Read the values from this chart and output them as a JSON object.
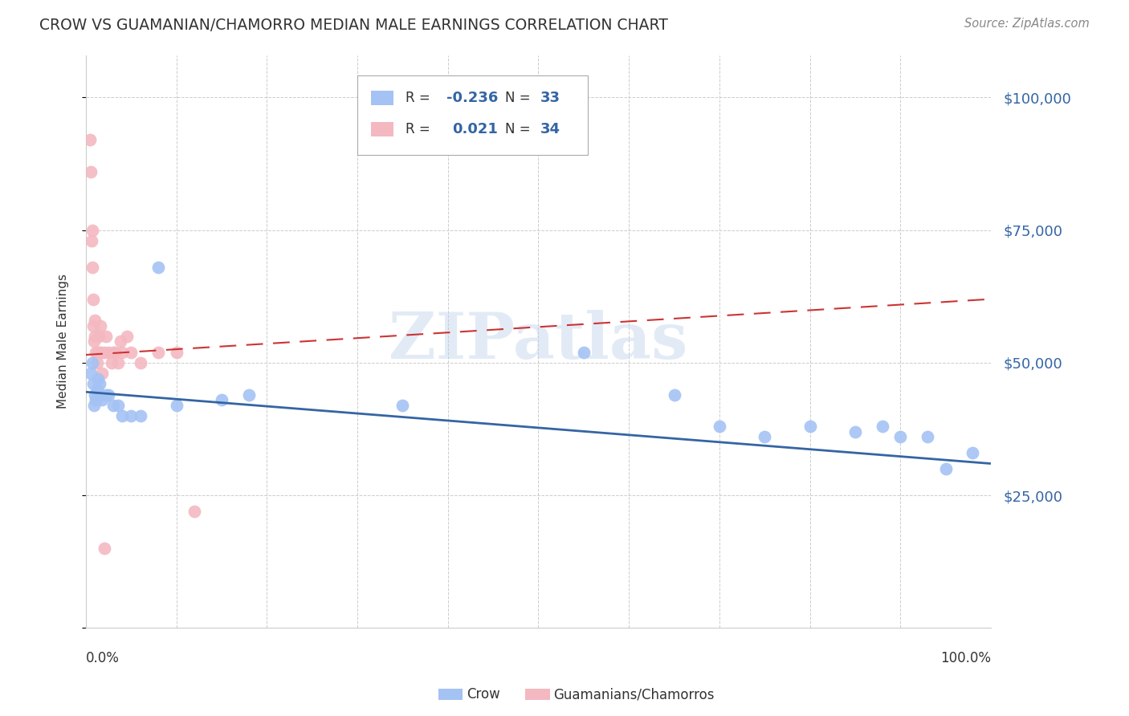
{
  "title": "CROW VS GUAMANIAN/CHAMORRO MEDIAN MALE EARNINGS CORRELATION CHART",
  "source": "Source: ZipAtlas.com",
  "ylabel": "Median Male Earnings",
  "yticks": [
    0,
    25000,
    50000,
    75000,
    100000
  ],
  "ytick_labels": [
    "",
    "$25,000",
    "$50,000",
    "$75,000",
    "$100,000"
  ],
  "crow_R": -0.236,
  "crow_N": 33,
  "guam_R": 0.021,
  "guam_N": 34,
  "crow_color": "#a4c2f4",
  "guam_color": "#f4b8c1",
  "trend_crow_color": "#3465a4",
  "trend_guam_color": "#cc3333",
  "watermark": "ZIPatlas",
  "crow_x": [
    0.005,
    0.007,
    0.008,
    0.009,
    0.01,
    0.011,
    0.012,
    0.013,
    0.015,
    0.018,
    0.022,
    0.025,
    0.03,
    0.035,
    0.04,
    0.05,
    0.06,
    0.08,
    0.1,
    0.15,
    0.18,
    0.35,
    0.55,
    0.65,
    0.7,
    0.75,
    0.8,
    0.85,
    0.88,
    0.9,
    0.93,
    0.95,
    0.98
  ],
  "crow_y": [
    48000,
    50000,
    46000,
    42000,
    44000,
    43000,
    45000,
    47000,
    46000,
    43000,
    44000,
    44000,
    42000,
    42000,
    40000,
    40000,
    40000,
    68000,
    42000,
    43000,
    44000,
    42000,
    52000,
    44000,
    38000,
    36000,
    38000,
    37000,
    38000,
    36000,
    36000,
    30000,
    33000
  ],
  "guam_x": [
    0.004,
    0.005,
    0.006,
    0.007,
    0.007,
    0.008,
    0.008,
    0.009,
    0.01,
    0.01,
    0.011,
    0.012,
    0.013,
    0.014,
    0.015,
    0.016,
    0.017,
    0.018,
    0.02,
    0.022,
    0.025,
    0.028,
    0.03,
    0.032,
    0.035,
    0.038,
    0.04,
    0.045,
    0.05,
    0.06,
    0.08,
    0.1,
    0.12,
    0.02
  ],
  "guam_y": [
    92000,
    86000,
    73000,
    68000,
    75000,
    62000,
    57000,
    54000,
    58000,
    55000,
    52000,
    50000,
    52000,
    55000,
    52000,
    57000,
    52000,
    48000,
    52000,
    55000,
    52000,
    50000,
    52000,
    52000,
    50000,
    54000,
    52000,
    55000,
    52000,
    50000,
    52000,
    52000,
    22000,
    15000
  ]
}
